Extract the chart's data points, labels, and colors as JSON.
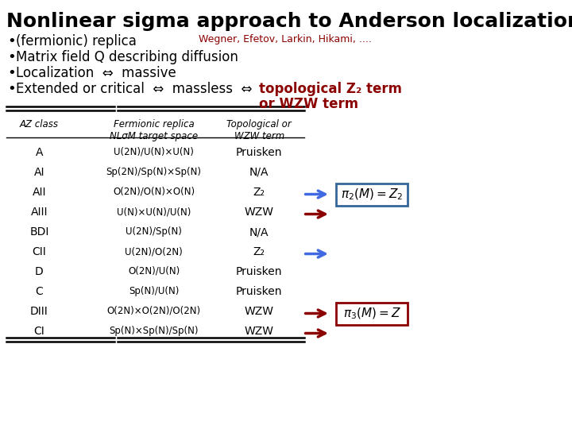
{
  "title": "Nonlinear sigma approach to Anderson localization",
  "citation": "Wegner, Efetov, Larkin, Hikami, ....",
  "table_rows": [
    [
      "A",
      "U(2N)/U(N)×U(N)",
      "Pruisken"
    ],
    [
      "AI",
      "Sp(2N)/Sp(N)×Sp(N)",
      "N/A"
    ],
    [
      "AII",
      "O(2N)/O(N)×O(N)",
      "Z₂"
    ],
    [
      "AIII",
      "U(N)×U(N)/U(N)",
      "WZW"
    ],
    [
      "BDI",
      "U(2N)/Sp(N)",
      "N/A"
    ],
    [
      "CII",
      "U(2N)/O(2N)",
      "Z₂"
    ],
    [
      "D",
      "O(2N)/U(N)",
      "Pruisken"
    ],
    [
      "C",
      "Sp(N)/U(N)",
      "Pruisken"
    ],
    [
      "DIII",
      "O(2N)×O(2N)/O(2N)",
      "WZW"
    ],
    [
      "CI",
      "Sp(N)×Sp(N)/Sp(N)",
      "WZW"
    ]
  ],
  "red_arrows": [
    "AIII",
    "DIII",
    "CI"
  ],
  "blue_arrows": [
    "AII",
    "CII"
  ],
  "box1_row": "AII",
  "box1_color": "#336699",
  "box2_row": "DIII",
  "box2_color": "#cc0000",
  "bg_color": "#ffffff",
  "title_color": "#000000",
  "bullet_color": "#000000",
  "citation_color": "#8b0000",
  "red_color": "#8b0000",
  "blue_color": "#4169e1"
}
